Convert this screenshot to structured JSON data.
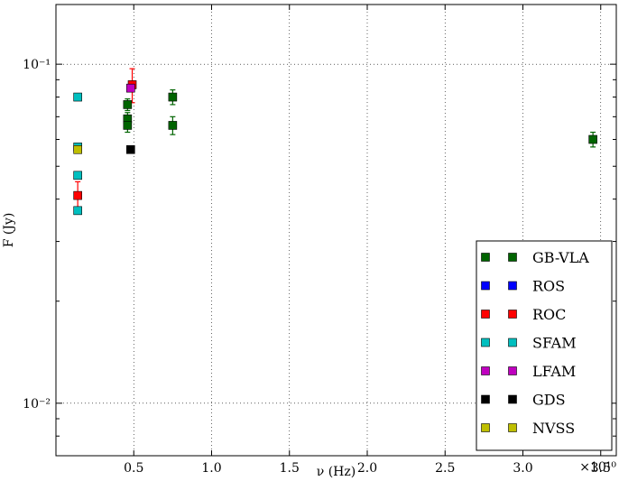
{
  "chart_data": {
    "type": "scatter",
    "xlabel": "ν (Hz)",
    "ylabel": "F (Jy)",
    "x_offset_label": "×10¹⁰",
    "xscale_factor": 10000000000.0,
    "xlim": [
      0.0,
      3.6
    ],
    "ylim": [
      0.007,
      0.15
    ],
    "yscale": "log",
    "grid": true,
    "legend_position": "lower-right",
    "x_ticks": [
      0.5,
      1.0,
      1.5,
      2.0,
      2.5,
      3.0,
      3.5
    ],
    "x_tick_labels": [
      "0.5",
      "1.0",
      "1.5",
      "2.0",
      "2.5",
      "3.0",
      "3.5"
    ],
    "y_major_ticks": [
      0.01,
      0.1
    ],
    "y_major_labels": [
      "10⁻²",
      "10⁻¹"
    ],
    "y_minor_ticks": [
      0.008,
      0.009,
      0.02,
      0.03,
      0.04,
      0.05,
      0.06,
      0.07,
      0.08,
      0.09
    ],
    "series": [
      {
        "name": "GB-VLA",
        "color": "#006400",
        "points": [
          {
            "x": 0.46,
            "y": 0.076,
            "err": 0.003
          },
          {
            "x": 0.46,
            "y": 0.069,
            "err": 0.003
          },
          {
            "x": 0.46,
            "y": 0.066,
            "err": 0.003
          },
          {
            "x": 0.75,
            "y": 0.08,
            "err": 0.004
          },
          {
            "x": 0.75,
            "y": 0.066,
            "err": 0.004
          },
          {
            "x": 3.45,
            "y": 0.06,
            "err": 0.003
          }
        ]
      },
      {
        "name": "ROS",
        "color": "#0000ff",
        "points": []
      },
      {
        "name": "ROC",
        "color": "#ff0000",
        "points": [
          {
            "x": 0.14,
            "y": 0.041,
            "err": 0.004
          },
          {
            "x": 0.49,
            "y": 0.087,
            "err": 0.01
          }
        ]
      },
      {
        "name": "SFAM",
        "color": "#00bfbf",
        "points": [
          {
            "x": 0.14,
            "y": 0.08,
            "err": 0
          },
          {
            "x": 0.14,
            "y": 0.057,
            "err": 0
          },
          {
            "x": 0.14,
            "y": 0.047,
            "err": 0
          },
          {
            "x": 0.14,
            "y": 0.037,
            "err": 0
          }
        ]
      },
      {
        "name": "LFAM",
        "color": "#bf00bf",
        "points": [
          {
            "x": 0.48,
            "y": 0.085,
            "err": 0
          }
        ]
      },
      {
        "name": "GDS",
        "color": "#000000",
        "points": [
          {
            "x": 0.48,
            "y": 0.056,
            "err": 0
          }
        ]
      },
      {
        "name": "NVSS",
        "color": "#bfbf00",
        "points": [
          {
            "x": 0.14,
            "y": 0.056,
            "err": 0
          }
        ]
      }
    ]
  }
}
